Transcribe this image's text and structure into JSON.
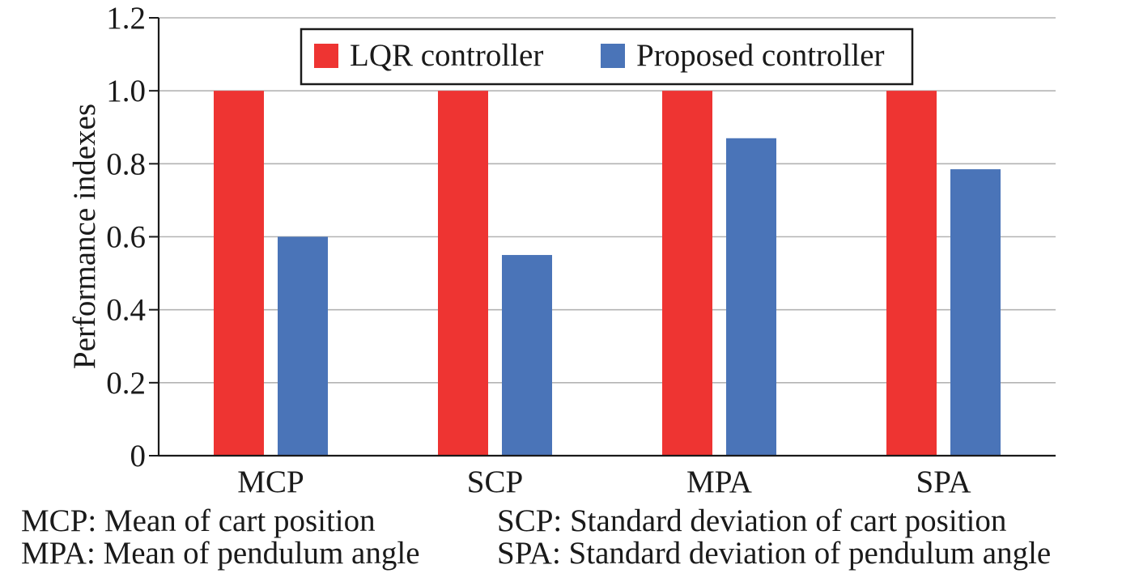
{
  "chart_data": {
    "type": "bar",
    "ylabel": "Performance indexes",
    "ylim": [
      0,
      1.2
    ],
    "yticks": [
      "0",
      "0.2",
      "0.4",
      "0.6",
      "0.8",
      "1.0",
      "1.2"
    ],
    "categories": [
      "MCP",
      "SCP",
      "MPA",
      "SPA"
    ],
    "series": [
      {
        "name": "LQR controller",
        "color": "#ee3432",
        "values": [
          1.0,
          1.0,
          1.0,
          1.0
        ]
      },
      {
        "name": "Proposed controller",
        "color": "#4a74b8",
        "values": [
          0.6,
          0.55,
          0.87,
          0.785
        ]
      }
    ],
    "grid": true,
    "legend_position": "top-center"
  },
  "notes": [
    {
      "left": "MCP: Mean of cart position",
      "right": "SCP: Standard deviation of cart position"
    },
    {
      "left": "MPA: Mean of pendulum angle",
      "right": "SPA: Standard deviation of pendulum angle"
    }
  ]
}
